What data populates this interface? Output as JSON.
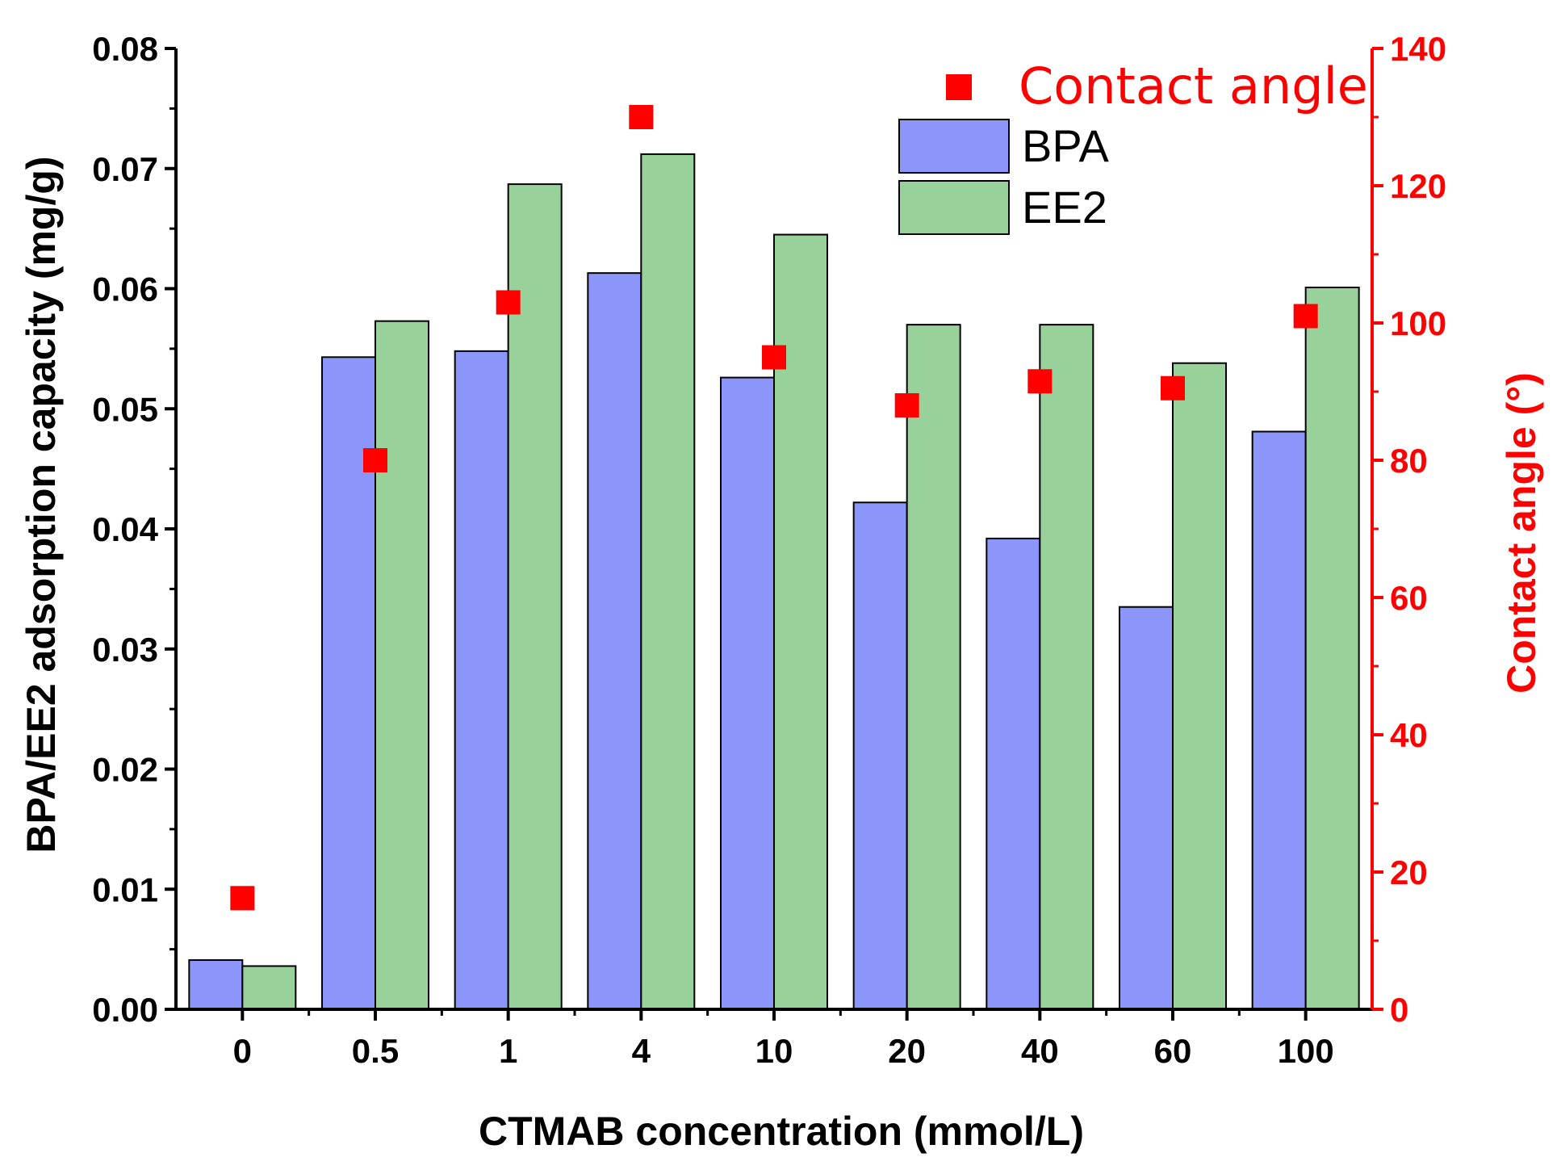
{
  "chart_data": {
    "type": "bar",
    "title": "",
    "xlabel": "CTMAB concentration (mmol/L)",
    "ylabel": "BPA/EE2 adsorption capacity (mg/g)",
    "y2label": "Contact angle (°)",
    "categories": [
      "0",
      "0.5",
      "1",
      "4",
      "10",
      "20",
      "40",
      "60",
      "100"
    ],
    "ylim": [
      0,
      0.08
    ],
    "y2lim": [
      0,
      140
    ],
    "yticks": [
      "0.00",
      "0.01",
      "0.02",
      "0.03",
      "0.04",
      "0.05",
      "0.06",
      "0.07",
      "0.08"
    ],
    "y2ticks": [
      "0",
      "20",
      "40",
      "60",
      "80",
      "100",
      "120",
      "140"
    ],
    "series": [
      {
        "name": "BPA",
        "axis": "left",
        "kind": "bar",
        "color": "#8c96fa",
        "values": [
          0.0041,
          0.0543,
          0.0548,
          0.0613,
          0.0526,
          0.0422,
          0.0392,
          0.0335,
          0.0481
        ]
      },
      {
        "name": "EE2",
        "axis": "left",
        "kind": "bar",
        "color": "#99d19a",
        "values": [
          0.0036,
          0.0573,
          0.0687,
          0.0712,
          0.0645,
          0.057,
          0.057,
          0.0538,
          0.0601
        ]
      },
      {
        "name": "Contact angle",
        "axis": "right",
        "kind": "scatter",
        "color": "#ff0000",
        "values": [
          16.2,
          80,
          103,
          130,
          95,
          88,
          91.5,
          90.5,
          101
        ]
      }
    ],
    "legend": {
      "position": "top-right"
    },
    "colors": {
      "axis": "#000000",
      "right_axis": "#ff0000"
    }
  }
}
